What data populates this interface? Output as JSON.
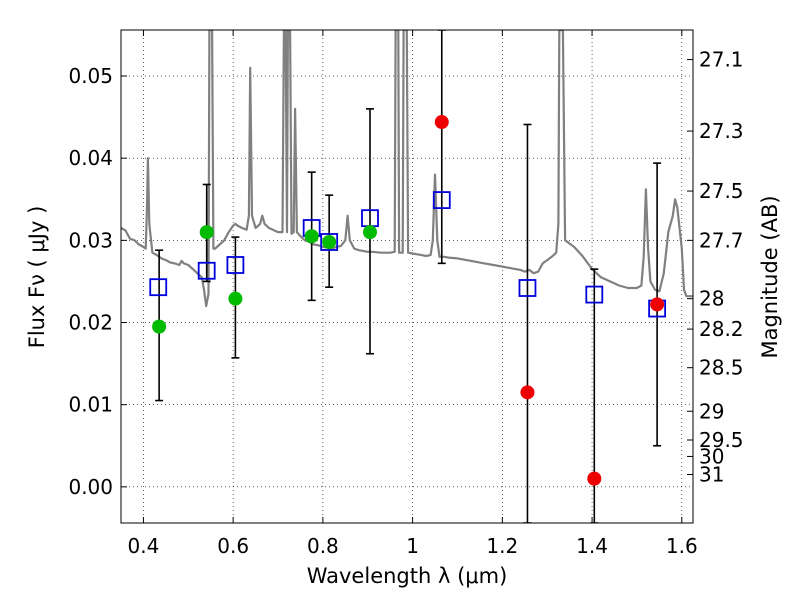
{
  "chart_data": {
    "type": "scatter",
    "xlabel": "Wavelength  λ (μm)",
    "ylabel_left": "Flux  Fν  ( μJy )",
    "ylabel_right": "Magnitude (AB)",
    "xlim": [
      0.35,
      1.625
    ],
    "ylim": [
      -0.0044,
      0.0556
    ],
    "grid": true,
    "x_ticks": [
      0.4,
      0.6,
      0.8,
      1.0,
      1.2,
      1.4,
      1.6
    ],
    "x_tick_labels": [
      "0.4",
      "0.6",
      "0.8",
      "1",
      "1.2",
      "1.4",
      "1.6"
    ],
    "y_ticks": [
      0.0,
      0.01,
      0.02,
      0.03,
      0.04,
      0.05
    ],
    "y_tick_labels": [
      "0.00",
      "0.01",
      "0.02",
      "0.03",
      "0.04",
      "0.05"
    ],
    "right_ticks": [
      {
        "label": "27.1",
        "flux": 0.052
      },
      {
        "label": "27.3",
        "flux": 0.0433
      },
      {
        "label": "27.5",
        "flux": 0.036
      },
      {
        "label": "27.7",
        "flux": 0.03
      },
      {
        "label": "28",
        "flux": 0.0229
      },
      {
        "label": "28.2",
        "flux": 0.0192
      },
      {
        "label": "28.5",
        "flux": 0.0145
      },
      {
        "label": "29",
        "flux": 0.0092
      },
      {
        "label": "29.5",
        "flux": 0.0057
      },
      {
        "label": "30",
        "flux": 0.0037
      },
      {
        "label": "31",
        "flux": 0.0015
      }
    ],
    "colors": {
      "model": "#808080",
      "green": "#00bb00",
      "red": "#ee0000",
      "box": "#0000dd",
      "errorbar": "#000000"
    },
    "model_spectrum": [
      [
        0.35,
        0.0315
      ],
      [
        0.36,
        0.0312
      ],
      [
        0.37,
        0.0302
      ],
      [
        0.38,
        0.03
      ],
      [
        0.39,
        0.0295
      ],
      [
        0.4,
        0.0292
      ],
      [
        0.405,
        0.029
      ],
      [
        0.408,
        0.034
      ],
      [
        0.41,
        0.04
      ],
      [
        0.413,
        0.032
      ],
      [
        0.42,
        0.0285
      ],
      [
        0.43,
        0.0282
      ],
      [
        0.44,
        0.0278
      ],
      [
        0.45,
        0.0276
      ],
      [
        0.46,
        0.0273
      ],
      [
        0.47,
        0.0272
      ],
      [
        0.48,
        0.027
      ],
      [
        0.485,
        0.0275
      ],
      [
        0.49,
        0.0272
      ],
      [
        0.5,
        0.027
      ],
      [
        0.51,
        0.0265
      ],
      [
        0.52,
        0.026
      ],
      [
        0.53,
        0.0255
      ],
      [
        0.535,
        0.024
      ],
      [
        0.54,
        0.022
      ],
      [
        0.545,
        0.0235
      ],
      [
        0.547,
        0.0556
      ],
      [
        0.553,
        0.0556
      ],
      [
        0.556,
        0.029
      ],
      [
        0.56,
        0.029
      ],
      [
        0.57,
        0.0295
      ],
      [
        0.58,
        0.03
      ],
      [
        0.59,
        0.031
      ],
      [
        0.6,
        0.0318
      ],
      [
        0.605,
        0.032
      ],
      [
        0.61,
        0.0318
      ],
      [
        0.62,
        0.0315
      ],
      [
        0.63,
        0.0313
      ],
      [
        0.635,
        0.033
      ],
      [
        0.638,
        0.051
      ],
      [
        0.642,
        0.033
      ],
      [
        0.65,
        0.0315
      ],
      [
        0.66,
        0.032
      ],
      [
        0.665,
        0.033
      ],
      [
        0.67,
        0.032
      ],
      [
        0.68,
        0.0315
      ],
      [
        0.7,
        0.031
      ],
      [
        0.71,
        0.031
      ],
      [
        0.713,
        0.0556
      ],
      [
        0.717,
        0.0556
      ],
      [
        0.72,
        0.031
      ],
      [
        0.722,
        0.0556
      ],
      [
        0.727,
        0.0556
      ],
      [
        0.73,
        0.0308
      ],
      [
        0.735,
        0.031
      ],
      [
        0.738,
        0.046
      ],
      [
        0.742,
        0.031
      ],
      [
        0.75,
        0.0305
      ],
      [
        0.76,
        0.03
      ],
      [
        0.77,
        0.0298
      ],
      [
        0.78,
        0.0295
      ],
      [
        0.79,
        0.0294
      ],
      [
        0.8,
        0.0292
      ],
      [
        0.81,
        0.0291
      ],
      [
        0.82,
        0.029
      ],
      [
        0.83,
        0.0292
      ],
      [
        0.84,
        0.0293
      ],
      [
        0.85,
        0.03
      ],
      [
        0.855,
        0.033
      ],
      [
        0.86,
        0.03
      ],
      [
        0.87,
        0.029
      ],
      [
        0.88,
        0.0288
      ],
      [
        0.89,
        0.0287
      ],
      [
        0.9,
        0.0286
      ],
      [
        0.91,
        0.0286
      ],
      [
        0.93,
        0.0285
      ],
      [
        0.95,
        0.0285
      ],
      [
        0.96,
        0.0286
      ],
      [
        0.962,
        0.0556
      ],
      [
        0.968,
        0.0556
      ],
      [
        0.97,
        0.0285
      ],
      [
        0.978,
        0.0285
      ],
      [
        0.98,
        0.0556
      ],
      [
        0.987,
        0.0556
      ],
      [
        0.99,
        0.0285
      ],
      [
        1.0,
        0.0284
      ],
      [
        1.01,
        0.0283
      ],
      [
        1.02,
        0.0282
      ],
      [
        1.03,
        0.0281
      ],
      [
        1.04,
        0.0282
      ],
      [
        1.045,
        0.03
      ],
      [
        1.05,
        0.038
      ],
      [
        1.055,
        0.03
      ],
      [
        1.06,
        0.028
      ],
      [
        1.07,
        0.028
      ],
      [
        1.08,
        0.0279
      ],
      [
        1.1,
        0.0278
      ],
      [
        1.12,
        0.0276
      ],
      [
        1.14,
        0.0274
      ],
      [
        1.16,
        0.0272
      ],
      [
        1.18,
        0.027
      ],
      [
        1.2,
        0.0268
      ],
      [
        1.22,
        0.0266
      ],
      [
        1.24,
        0.0264
      ],
      [
        1.25,
        0.0262
      ],
      [
        1.26,
        0.0264
      ],
      [
        1.27,
        0.026
      ],
      [
        1.28,
        0.0262
      ],
      [
        1.29,
        0.0272
      ],
      [
        1.3,
        0.0276
      ],
      [
        1.31,
        0.028
      ],
      [
        1.32,
        0.0285
      ],
      [
        1.325,
        0.032
      ],
      [
        1.327,
        0.0556
      ],
      [
        1.335,
        0.0556
      ],
      [
        1.34,
        0.03
      ],
      [
        1.36,
        0.0292
      ],
      [
        1.38,
        0.028
      ],
      [
        1.4,
        0.0265
      ],
      [
        1.42,
        0.0255
      ],
      [
        1.44,
        0.025
      ],
      [
        1.46,
        0.0245
      ],
      [
        1.48,
        0.0242
      ],
      [
        1.5,
        0.0242
      ],
      [
        1.51,
        0.0245
      ],
      [
        1.515,
        0.028
      ],
      [
        1.52,
        0.0362
      ],
      [
        1.525,
        0.029
      ],
      [
        1.53,
        0.025
      ],
      [
        1.54,
        0.024
      ],
      [
        1.55,
        0.0238
      ],
      [
        1.56,
        0.026
      ],
      [
        1.57,
        0.031
      ],
      [
        1.58,
        0.033
      ],
      [
        1.585,
        0.035
      ],
      [
        1.59,
        0.034
      ],
      [
        1.6,
        0.029
      ],
      [
        1.605,
        0.024
      ],
      [
        1.61,
        0.0232
      ],
      [
        1.625,
        0.0232
      ]
    ],
    "green_points": [
      {
        "x": 0.435,
        "y": 0.0195,
        "err_lo": 0.009,
        "err_hi": 0.0093
      },
      {
        "x": 0.541,
        "y": 0.031,
        "err_lo": 0.006,
        "err_hi": 0.0058
      },
      {
        "x": 0.605,
        "y": 0.0229,
        "err_lo": 0.0072,
        "err_hi": 0.0075
      },
      {
        "x": 0.775,
        "y": 0.0305,
        "err_lo": 0.0078,
        "err_hi": 0.0078
      },
      {
        "x": 0.814,
        "y": 0.0298,
        "err_lo": 0.0055,
        "err_hi": 0.0057
      },
      {
        "x": 0.905,
        "y": 0.031,
        "err_lo": 0.0148,
        "err_hi": 0.015
      }
    ],
    "red_points": [
      {
        "x": 1.065,
        "y": 0.0444,
        "err_lo": 0.0172,
        "err_hi": 0.0112
      },
      {
        "x": 1.256,
        "y": 0.0115,
        "err_lo": 0.0159,
        "err_hi": 0.0326
      },
      {
        "x": 1.405,
        "y": 0.001,
        "err_lo": 0.0054,
        "err_hi": 0.0255
      },
      {
        "x": 1.545,
        "y": 0.0222,
        "err_lo": 0.0172,
        "err_hi": 0.0172
      }
    ],
    "model_boxes": [
      {
        "x": 0.433,
        "y": 0.0243
      },
      {
        "x": 0.541,
        "y": 0.0263
      },
      {
        "x": 0.605,
        "y": 0.027
      },
      {
        "x": 0.775,
        "y": 0.0315
      },
      {
        "x": 0.814,
        "y": 0.0298
      },
      {
        "x": 0.905,
        "y": 0.0327
      },
      {
        "x": 1.065,
        "y": 0.0349
      },
      {
        "x": 1.256,
        "y": 0.0242
      },
      {
        "x": 1.405,
        "y": 0.0234
      },
      {
        "x": 1.545,
        "y": 0.0217
      }
    ]
  }
}
